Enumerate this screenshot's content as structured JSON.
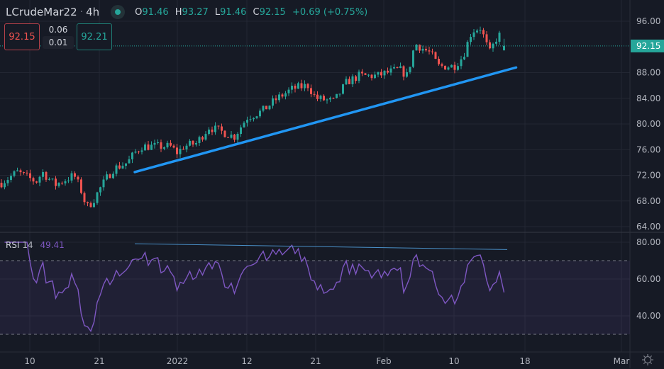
{
  "header": {
    "symbol": "LCrudeMar22",
    "separator": "·",
    "interval": "4h",
    "status_icon": "market-open-dot",
    "ohlc": {
      "o_label": "O",
      "o": "91.46",
      "h_label": "H",
      "h": "93.27",
      "l_label": "L",
      "l": "91.46",
      "c_label": "C",
      "c": "92.15",
      "change": "+0.69 (+0.75%)"
    }
  },
  "trade": {
    "sell_price": "92.15",
    "spread_top": "0.06",
    "spread_bottom": "0.01",
    "buy_price": "92.21"
  },
  "rsi_legend": {
    "name": "RSI",
    "length": "14",
    "value": "49.41"
  },
  "colors": {
    "background": "#161a25",
    "up": "#26a69a",
    "down": "#ef5350",
    "trendline": "#2196f3",
    "rsi": "#7e57c2",
    "grid": "#232733",
    "axis_text": "#b2b5be"
  },
  "chart_data": [
    {
      "type": "candlestick",
      "ylim": [
        63,
        97.5
      ],
      "y_ticks": [
        "64.00",
        "68.00",
        "72.00",
        "76.00",
        "80.00",
        "84.00",
        "88.00",
        "96.00"
      ],
      "last_price_label": "92.15",
      "last_price": 92.15,
      "x_ticks": [
        {
          "label": "10",
          "date": "2021-12-10"
        },
        {
          "label": "21",
          "date": "2021-12-21"
        },
        {
          "label": "2022",
          "date": "2022-01-01"
        },
        {
          "label": "12",
          "date": "2022-01-12"
        },
        {
          "label": "21",
          "date": "2022-01-21"
        },
        {
          "label": "Feb",
          "date": "2022-02-01"
        },
        {
          "label": "10",
          "date": "2022-02-10"
        },
        {
          "label": "18",
          "date": "2022-02-18"
        },
        {
          "label": "Mar",
          "date": "2022-03-01"
        }
      ],
      "price_path": [
        [
          "2021-12-05",
          70.5
        ],
        [
          "2021-12-08",
          72.5
        ],
        [
          "2021-12-11",
          71
        ],
        [
          "2021-12-12",
          72.5
        ],
        [
          "2021-12-14",
          70.5
        ],
        [
          "2021-12-16",
          71.5
        ],
        [
          "2021-12-17",
          72
        ],
        [
          "2021-12-18",
          70
        ],
        [
          "2021-12-19",
          67
        ],
        [
          "2021-12-20",
          68
        ],
        [
          "2021-12-22",
          71.5
        ],
        [
          "2021-12-23",
          73
        ],
        [
          "2021-12-25",
          74
        ],
        [
          "2021-12-26",
          75.5
        ],
        [
          "2021-12-27",
          76.5
        ],
        [
          "2021-12-31",
          76.5
        ],
        [
          "2022-01-01",
          75.5
        ],
        [
          "2022-01-02",
          76.5
        ],
        [
          "2022-01-04",
          77
        ],
        [
          "2022-01-06",
          79.5
        ],
        [
          "2022-01-08",
          78.8
        ],
        [
          "2022-01-10",
          78
        ],
        [
          "2022-01-12",
          81
        ],
        [
          "2022-01-14",
          82
        ],
        [
          "2022-01-16",
          84
        ],
        [
          "2022-01-18",
          85.5
        ],
        [
          "2022-01-20",
          86
        ],
        [
          "2022-01-21",
          84
        ],
        [
          "2022-01-24",
          83.5
        ],
        [
          "2022-01-26",
          86.5
        ],
        [
          "2022-01-28",
          87.5
        ],
        [
          "2022-01-31",
          87.5
        ],
        [
          "2022-02-03",
          88.5
        ],
        [
          "2022-02-04",
          87.5
        ],
        [
          "2022-02-05",
          92.5
        ],
        [
          "2022-02-07",
          91
        ],
        [
          "2022-02-08",
          89
        ],
        [
          "2022-02-10",
          89
        ],
        [
          "2022-02-11",
          90.5
        ],
        [
          "2022-02-12",
          94.5
        ],
        [
          "2022-02-13",
          95
        ],
        [
          "2022-02-14",
          91
        ],
        [
          "2022-02-15",
          94
        ],
        [
          "2022-02-16",
          92.15
        ]
      ],
      "last_candle": {
        "open": 91.46,
        "high": 93.27,
        "low": 91.46,
        "close": 92.15
      },
      "trendline": {
        "start": [
          "2021-12-26",
          72.5
        ],
        "end": [
          "2022-02-17",
          88.8
        ]
      },
      "grid": true
    },
    {
      "type": "line",
      "indicator": "RSI 14",
      "ylim": [
        25,
        83
      ],
      "y_ticks": [
        "40.00",
        "60.00",
        "80.00"
      ],
      "bands": [
        30,
        70
      ],
      "last_value": 49.41,
      "trendline": {
        "start": [
          "2021-12-26",
          79.2
        ],
        "end": [
          "2022-02-16",
          76
        ]
      }
    }
  ]
}
